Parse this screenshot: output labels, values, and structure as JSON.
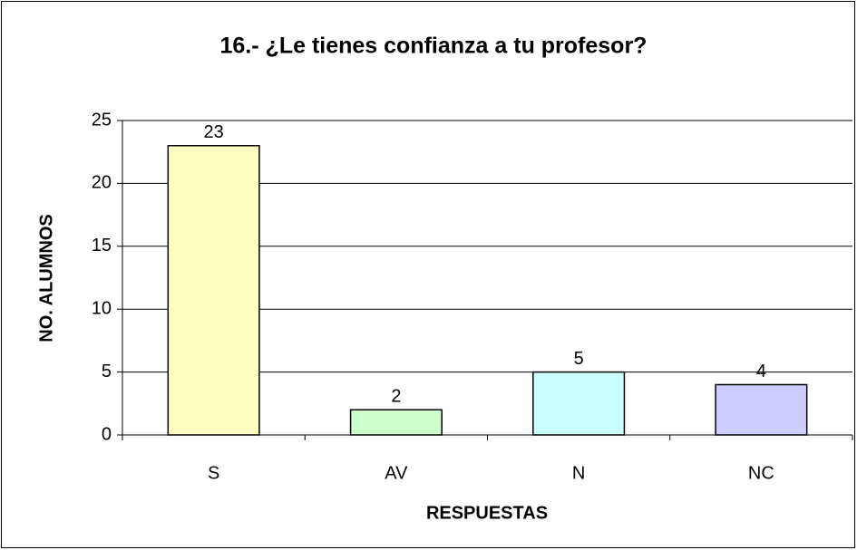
{
  "chart_data": {
    "type": "bar",
    "title": "16.- ¿Le tienes confianza a tu profesor?",
    "x_label": "RESPUESTAS",
    "y_label": "NO. ALUMNOS",
    "categories": [
      "S",
      "AV",
      "N",
      "NC"
    ],
    "values": [
      23,
      2,
      5,
      4
    ],
    "colors": [
      "#ffffc0",
      "#ccffcc",
      "#ccffff",
      "#ccccff"
    ],
    "ylim": [
      0,
      25
    ],
    "yticks": [
      0,
      5,
      10,
      15,
      20,
      25
    ],
    "grid": true
  }
}
